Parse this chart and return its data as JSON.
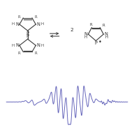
{
  "bg_color": "#ffffff",
  "line_color": "#6666bb",
  "line_width": 0.7,
  "fig_width": 1.88,
  "fig_height": 1.89,
  "dpi": 100
}
